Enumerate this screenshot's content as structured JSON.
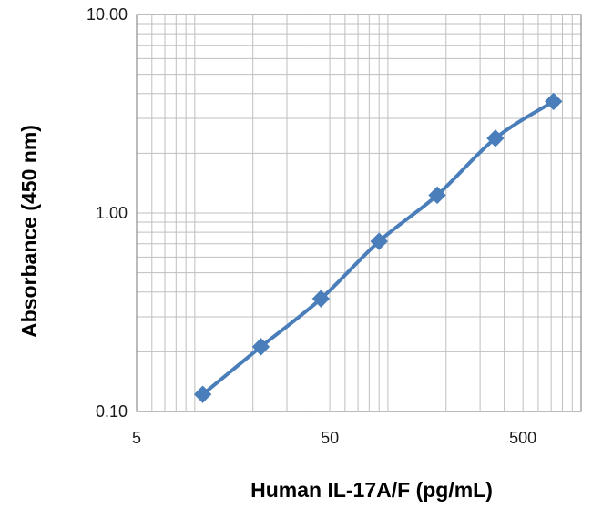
{
  "chart_data": {
    "type": "line",
    "title": "",
    "xlabel": "Human IL-17A/F (pg/mL)",
    "ylabel": "Absorbance (450 nm)",
    "x_scale": "log",
    "y_scale": "log",
    "xlim": [
      5,
      1000
    ],
    "ylim": [
      0.1,
      10
    ],
    "x_ticks": [
      5,
      50,
      500
    ],
    "x_tick_labels": [
      "5",
      "50",
      "500"
    ],
    "y_ticks": [
      0.1,
      1,
      10
    ],
    "y_tick_labels": [
      "0.10",
      "1.00",
      "10.00"
    ],
    "grid": true,
    "legend": "none",
    "series": [
      {
        "x": [
          11,
          22,
          45,
          90,
          180,
          360,
          720
        ],
        "y": [
          0.122,
          0.212,
          0.37,
          0.72,
          1.23,
          2.38,
          3.65
        ],
        "color": "#4a7ebb",
        "marker": "diamond"
      }
    ]
  }
}
